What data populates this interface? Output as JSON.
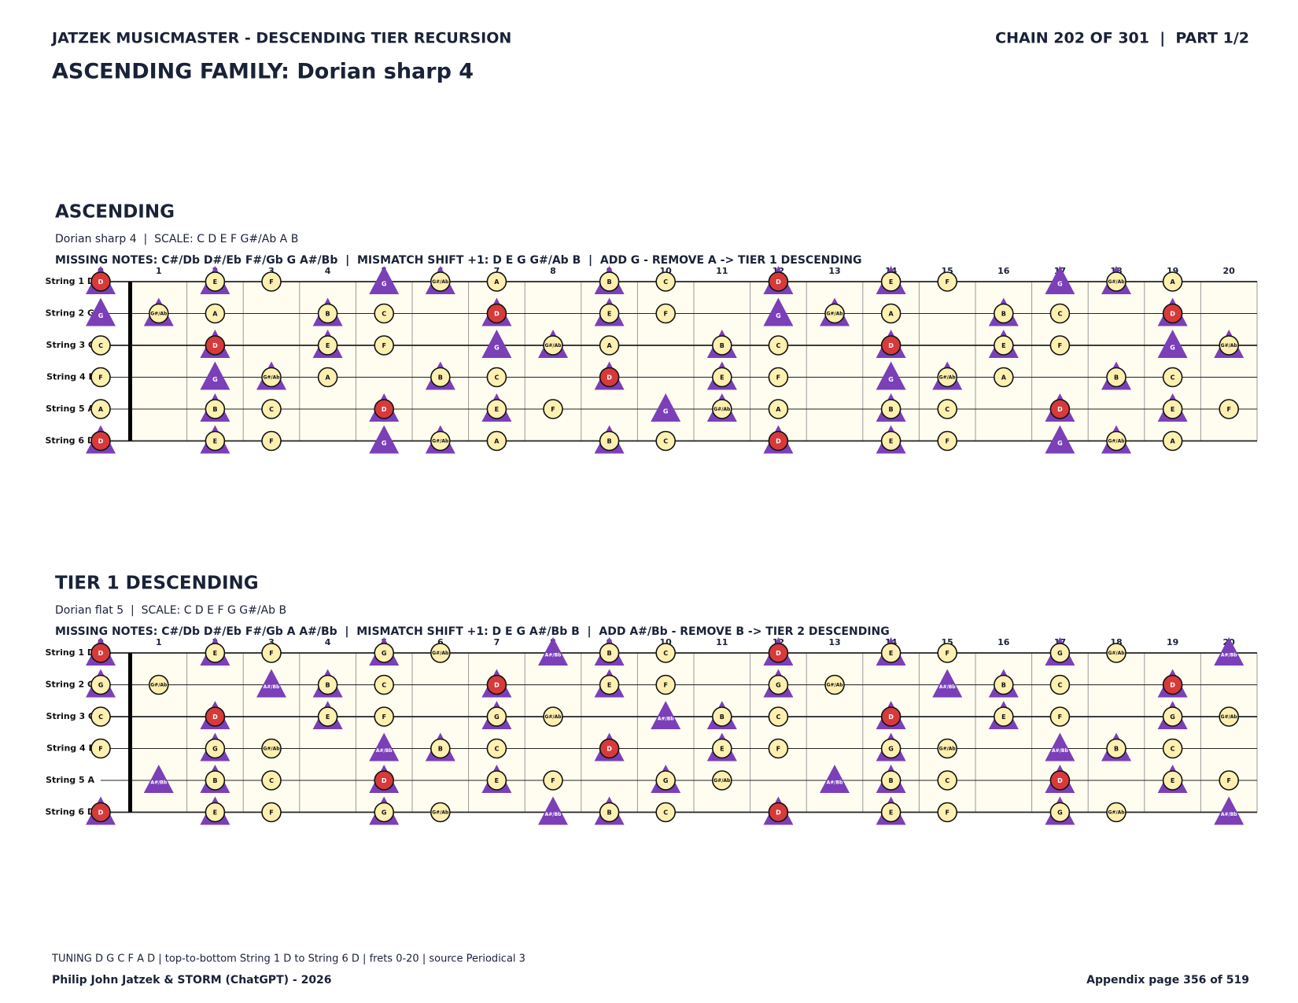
{
  "header": {
    "brand": "JATZEK MUSICMASTER - DESCENDING TIER RECURSION",
    "chain": "CHAIN 202 OF 301  |  PART 1/2",
    "title": "ASCENDING FAMILY: Dorian sharp 4"
  },
  "frets": [
    0,
    1,
    2,
    3,
    4,
    5,
    6,
    7,
    8,
    9,
    10,
    11,
    12,
    13,
    14,
    15,
    16,
    17,
    18,
    19,
    20
  ],
  "strings": [
    "String 1 D",
    "String 2 G",
    "String 3 C",
    "String 4 F",
    "String 5 A",
    "String 6 D"
  ],
  "sections": [
    {
      "heading": "ASCENDING",
      "scale": "Dorian sharp 4  |  SCALE: C D E F G#/Ab A B",
      "missing": "MISSING NOTES: C#/Db D#/Eb F#/Gb G A#/Bb  |  MISMATCH SHIFT +1: D E G G#/Ab B  |  ADD G - REMOVE A -> TIER 1 DESCENDING",
      "rows": [
        [
          [
            "D",
            "rt"
          ],
          null,
          [
            "E",
            "ct"
          ],
          [
            "F",
            "c"
          ],
          null,
          [
            "G",
            "t"
          ],
          [
            "G#/Ab",
            "ct"
          ],
          [
            "A",
            "c"
          ],
          null,
          [
            "B",
            "ct"
          ],
          [
            "C",
            "c"
          ],
          null,
          [
            "D",
            "rt"
          ],
          null,
          [
            "E",
            "ct"
          ],
          [
            "F",
            "c"
          ],
          null,
          [
            "G",
            "t"
          ],
          [
            "G#/Ab",
            "ct"
          ],
          [
            "A",
            "c"
          ],
          null
        ],
        [
          [
            "G",
            "t"
          ],
          [
            "G#/Ab",
            "ct"
          ],
          [
            "A",
            "c"
          ],
          null,
          [
            "B",
            "ct"
          ],
          [
            "C",
            "c"
          ],
          null,
          [
            "D",
            "rt"
          ],
          null,
          [
            "E",
            "ct"
          ],
          [
            "F",
            "c"
          ],
          null,
          [
            "G",
            "t"
          ],
          [
            "G#/Ab",
            "ct"
          ],
          [
            "A",
            "c"
          ],
          null,
          [
            "B",
            "ct"
          ],
          [
            "C",
            "c"
          ],
          null,
          [
            "D",
            "rt"
          ],
          null
        ],
        [
          [
            "C",
            "c"
          ],
          null,
          [
            "D",
            "rt"
          ],
          null,
          [
            "E",
            "ct"
          ],
          [
            "F",
            "c"
          ],
          null,
          [
            "G",
            "t"
          ],
          [
            "G#/Ab",
            "ct"
          ],
          [
            "A",
            "c"
          ],
          null,
          [
            "B",
            "ct"
          ],
          [
            "C",
            "c"
          ],
          null,
          [
            "D",
            "rt"
          ],
          null,
          [
            "E",
            "ct"
          ],
          [
            "F",
            "c"
          ],
          null,
          [
            "G",
            "t"
          ],
          [
            "G#/Ab",
            "ct"
          ]
        ],
        [
          [
            "F",
            "c"
          ],
          null,
          [
            "G",
            "t"
          ],
          [
            "G#/Ab",
            "ct"
          ],
          [
            "A",
            "c"
          ],
          null,
          [
            "B",
            "ct"
          ],
          [
            "C",
            "c"
          ],
          null,
          [
            "D",
            "rt"
          ],
          null,
          [
            "E",
            "ct"
          ],
          [
            "F",
            "c"
          ],
          null,
          [
            "G",
            "t"
          ],
          [
            "G#/Ab",
            "ct"
          ],
          [
            "A",
            "c"
          ],
          null,
          [
            "B",
            "ct"
          ],
          [
            "C",
            "c"
          ],
          null
        ],
        [
          [
            "A",
            "c"
          ],
          null,
          [
            "B",
            "ct"
          ],
          [
            "C",
            "c"
          ],
          null,
          [
            "D",
            "rt"
          ],
          null,
          [
            "E",
            "ct"
          ],
          [
            "F",
            "c"
          ],
          null,
          [
            "G",
            "t"
          ],
          [
            "G#/Ab",
            "ct"
          ],
          [
            "A",
            "c"
          ],
          null,
          [
            "B",
            "ct"
          ],
          [
            "C",
            "c"
          ],
          null,
          [
            "D",
            "rt"
          ],
          null,
          [
            "E",
            "ct"
          ],
          [
            "F",
            "c"
          ]
        ],
        [
          [
            "D",
            "rt"
          ],
          null,
          [
            "E",
            "ct"
          ],
          [
            "F",
            "c"
          ],
          null,
          [
            "G",
            "t"
          ],
          [
            "G#/Ab",
            "ct"
          ],
          [
            "A",
            "c"
          ],
          null,
          [
            "B",
            "ct"
          ],
          [
            "C",
            "c"
          ],
          null,
          [
            "D",
            "rt"
          ],
          null,
          [
            "E",
            "ct"
          ],
          [
            "F",
            "c"
          ],
          null,
          [
            "G",
            "t"
          ],
          [
            "G#/Ab",
            "ct"
          ],
          [
            "A",
            "c"
          ],
          null
        ]
      ]
    },
    {
      "heading": "TIER 1 DESCENDING",
      "scale": "Dorian flat 5  |  SCALE: C D E F G G#/Ab B",
      "missing": "MISSING NOTES: C#/Db D#/Eb F#/Gb A A#/Bb  |  MISMATCH SHIFT +1: D E G A#/Bb B  |  ADD A#/Bb - REMOVE B -> TIER 2 DESCENDING",
      "rows": [
        [
          [
            "D",
            "rt"
          ],
          null,
          [
            "E",
            "ct"
          ],
          [
            "F",
            "c"
          ],
          null,
          [
            "G",
            "ct"
          ],
          [
            "G#/Ab",
            "c"
          ],
          null,
          [
            "A#/Bb",
            "t"
          ],
          [
            "B",
            "ct"
          ],
          [
            "C",
            "c"
          ],
          null,
          [
            "D",
            "rt"
          ],
          null,
          [
            "E",
            "ct"
          ],
          [
            "F",
            "c"
          ],
          null,
          [
            "G",
            "ct"
          ],
          [
            "G#/Ab",
            "c"
          ],
          null,
          [
            "A#/Bb",
            "t"
          ]
        ],
        [
          [
            "G",
            "ct"
          ],
          [
            "G#/Ab",
            "c"
          ],
          null,
          [
            "A#/Bb",
            "t"
          ],
          [
            "B",
            "ct"
          ],
          [
            "C",
            "c"
          ],
          null,
          [
            "D",
            "rt"
          ],
          null,
          [
            "E",
            "ct"
          ],
          [
            "F",
            "c"
          ],
          null,
          [
            "G",
            "ct"
          ],
          [
            "G#/Ab",
            "c"
          ],
          null,
          [
            "A#/Bb",
            "t"
          ],
          [
            "B",
            "ct"
          ],
          [
            "C",
            "c"
          ],
          null,
          [
            "D",
            "rt"
          ],
          null
        ],
        [
          [
            "C",
            "c"
          ],
          null,
          [
            "D",
            "rt"
          ],
          null,
          [
            "E",
            "ct"
          ],
          [
            "F",
            "c"
          ],
          null,
          [
            "G",
            "ct"
          ],
          [
            "G#/Ab",
            "c"
          ],
          null,
          [
            "A#/Bb",
            "t"
          ],
          [
            "B",
            "ct"
          ],
          [
            "C",
            "c"
          ],
          null,
          [
            "D",
            "rt"
          ],
          null,
          [
            "E",
            "ct"
          ],
          [
            "F",
            "c"
          ],
          null,
          [
            "G",
            "ct"
          ],
          [
            "G#/Ab",
            "c"
          ]
        ],
        [
          [
            "F",
            "c"
          ],
          null,
          [
            "G",
            "ct"
          ],
          [
            "G#/Ab",
            "c"
          ],
          null,
          [
            "A#/Bb",
            "t"
          ],
          [
            "B",
            "ct"
          ],
          [
            "C",
            "c"
          ],
          null,
          [
            "D",
            "rt"
          ],
          null,
          [
            "E",
            "ct"
          ],
          [
            "F",
            "c"
          ],
          null,
          [
            "G",
            "ct"
          ],
          [
            "G#/Ab",
            "c"
          ],
          null,
          [
            "A#/Bb",
            "t"
          ],
          [
            "B",
            "ct"
          ],
          [
            "C",
            "c"
          ],
          null
        ],
        [
          null,
          [
            "A#/Bb",
            "t"
          ],
          [
            "B",
            "ct"
          ],
          [
            "C",
            "c"
          ],
          null,
          [
            "D",
            "rt"
          ],
          null,
          [
            "E",
            "ct"
          ],
          [
            "F",
            "c"
          ],
          null,
          [
            "G",
            "ct"
          ],
          [
            "G#/Ab",
            "c"
          ],
          null,
          [
            "A#/Bb",
            "t"
          ],
          [
            "B",
            "ct"
          ],
          [
            "C",
            "c"
          ],
          null,
          [
            "D",
            "rt"
          ],
          null,
          [
            "E",
            "ct"
          ],
          [
            "F",
            "c"
          ]
        ],
        [
          [
            "D",
            "rt"
          ],
          null,
          [
            "E",
            "ct"
          ],
          [
            "F",
            "c"
          ],
          null,
          [
            "G",
            "ct"
          ],
          [
            "G#/Ab",
            "c"
          ],
          null,
          [
            "A#/Bb",
            "t"
          ],
          [
            "B",
            "ct"
          ],
          [
            "C",
            "c"
          ],
          null,
          [
            "D",
            "rt"
          ],
          null,
          [
            "E",
            "ct"
          ],
          [
            "F",
            "c"
          ],
          null,
          [
            "G",
            "ct"
          ],
          [
            "G#/Ab",
            "c"
          ],
          null,
          [
            "A#/Bb",
            "t"
          ]
        ]
      ]
    }
  ],
  "footer": {
    "tuning": "TUNING D G C F A D | top-to-bottom String 1 D to String 6 D | frets 0-20 | source Periodical 3",
    "author": "Philip John Jatzek & STORM (ChatGPT) - 2026",
    "page": "Appendix page 356 of 519"
  }
}
